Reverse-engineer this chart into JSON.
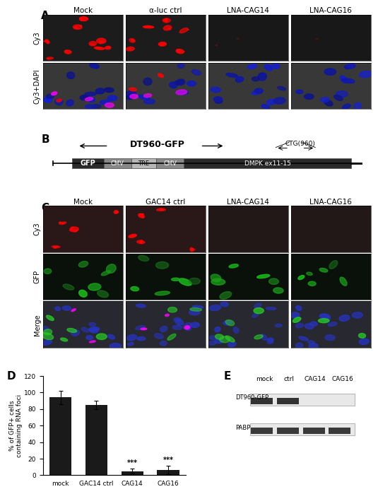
{
  "panel_A_labels": [
    "Mock",
    "α-luc ctrl",
    "LNA-CAG14",
    "LNA-CAG16"
  ],
  "panel_A_row_labels": [
    "Cy3",
    "Cy3+DAPI"
  ],
  "panel_B_title": "DT960-GFP",
  "panel_B_ctg": "CTG(960)",
  "panel_C_labels": [
    "Mock",
    "GAC14 ctrl",
    "LNA-CAG14",
    "LNA-CAG16"
  ],
  "panel_C_row_labels": [
    "Cy3",
    "GFP",
    "Merge"
  ],
  "panel_D_ylabel": "% of GFP+ cells\ncontaining RNA foci",
  "panel_D_categories": [
    "mock",
    "GAC14 ctrl",
    "CAG14",
    "CAG16"
  ],
  "panel_D_values": [
    94,
    85,
    5,
    6
  ],
  "panel_D_errors": [
    8,
    5,
    3,
    5
  ],
  "panel_D_sig": [
    "",
    "",
    "***",
    "***"
  ],
  "panel_D_ylim": [
    0,
    120
  ],
  "panel_D_yticks": [
    0,
    20,
    40,
    60,
    80,
    100,
    120
  ],
  "panel_D_bar_color": "#1a1a1a",
  "panel_E_col_labels": [
    "mock",
    "ctrl",
    "CAG14",
    "CAG16"
  ],
  "panel_E_row_labels": [
    "DT960-GFP",
    "PABP"
  ],
  "bg_color": "#ffffff",
  "label_fontsize": 8,
  "tick_fontsize": 6.5,
  "panel_label_fontsize": 11
}
